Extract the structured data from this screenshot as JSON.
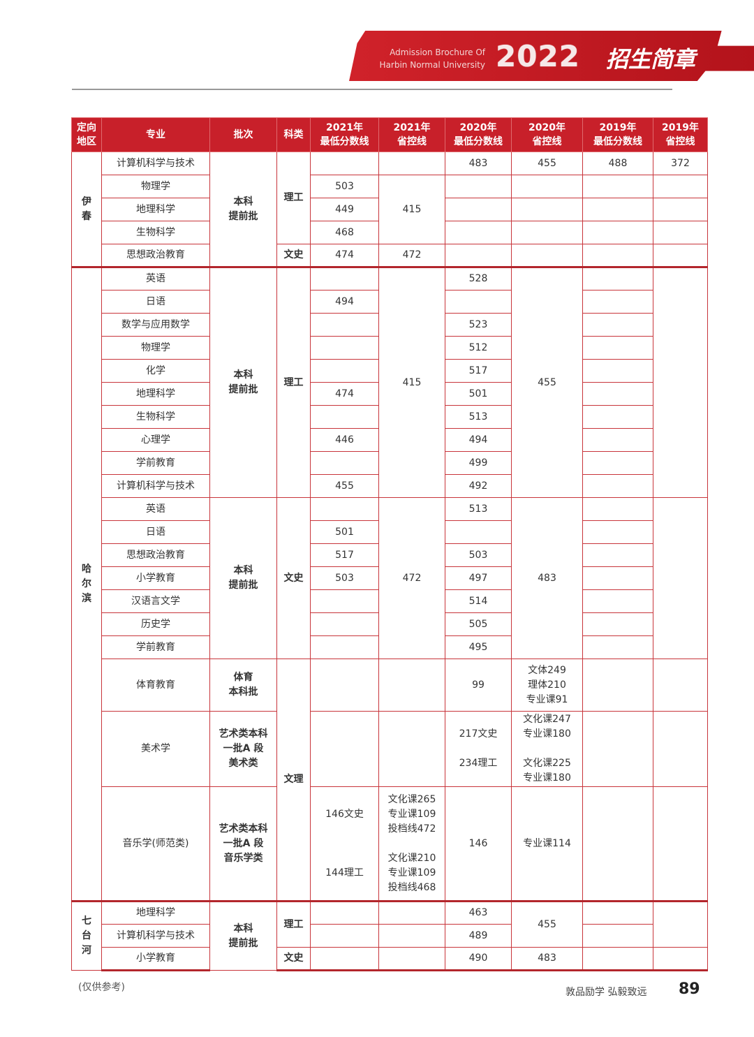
{
  "header": {
    "en_line1": "Admission Brochure Of",
    "en_line2": "Harbin Normal University",
    "year": "2022",
    "title": "招生简章",
    "brand_color": "#c8202a"
  },
  "columns": [
    "定向\n地区",
    "专业",
    "批次",
    "科类",
    "2021年\n最低分数线",
    "2021年\n省控线",
    "2020年\n最低分数线",
    "2020年\n省控线",
    "2019年\n最低分数线",
    "2019年\n省控线"
  ],
  "yichun": {
    "region": "伊\n春",
    "batch": "本科\n提前批",
    "cat_sci": "理工",
    "cat_lib": "文史",
    "ctrl2021_sci": "415",
    "ctrl2021_lib": "472",
    "rows": [
      {
        "major": "计算机科学与技术",
        "min2021": "",
        "min2020": "483",
        "ctrl2020": "455",
        "min2019": "488",
        "ctrl2019": "372"
      },
      {
        "major": "物理学",
        "min2021": "503"
      },
      {
        "major": "地理科学",
        "min2021": "449"
      },
      {
        "major": "生物科学",
        "min2021": "468"
      },
      {
        "major": "思想政治教育",
        "min2021": "474"
      }
    ]
  },
  "harbin": {
    "region": "哈\n尔\n滨",
    "batch": "本科\n提前批",
    "cat_sci": "理工",
    "cat_lib": "文史",
    "cat_art": "文理",
    "ctrl2021_sci": "415",
    "ctrl2020_sci": "455",
    "ctrl2021_lib": "472",
    "ctrl2020_lib": "483",
    "sci_rows": [
      {
        "major": "英语",
        "min2021": "",
        "min2020": "528"
      },
      {
        "major": "日语",
        "min2021": "494",
        "min2020": ""
      },
      {
        "major": "数学与应用数学",
        "min2021": "",
        "min2020": "523"
      },
      {
        "major": "物理学",
        "min2021": "",
        "min2020": "512"
      },
      {
        "major": "化学",
        "min2021": "",
        "min2020": "517"
      },
      {
        "major": "地理科学",
        "min2021": "474",
        "min2020": "501"
      },
      {
        "major": "生物科学",
        "min2021": "",
        "min2020": "513"
      },
      {
        "major": "心理学",
        "min2021": "446",
        "min2020": "494"
      },
      {
        "major": "学前教育",
        "min2021": "",
        "min2020": "499"
      },
      {
        "major": "计算机科学与技术",
        "min2021": "455",
        "min2020": "492"
      }
    ],
    "lib_rows": [
      {
        "major": "英语",
        "min2021": "",
        "min2020": "513"
      },
      {
        "major": "日语",
        "min2021": "501",
        "min2020": ""
      },
      {
        "major": "思想政治教育",
        "min2021": "517",
        "min2020": "503"
      },
      {
        "major": "小学教育",
        "min2021": "503",
        "min2020": "497"
      },
      {
        "major": "汉语言文学",
        "min2021": "",
        "min2020": "514"
      },
      {
        "major": "历史学",
        "min2021": "",
        "min2020": "505"
      },
      {
        "major": "学前教育",
        "min2021": "",
        "min2020": "495"
      }
    ],
    "art_rows": [
      {
        "major": "体育教育",
        "batch": "体育\n本科批",
        "min2021": "",
        "ctrl2021": "",
        "min2020": "99",
        "ctrl2020": "文体249\n理体210\n专业课91"
      },
      {
        "major": "美术学",
        "batch": "艺术类本科\n一批A 段\n美术类",
        "min2021": "",
        "ctrl2021": "",
        "min2020": "217文史\n\n234理工",
        "ctrl2020": "文化课247\n专业课180\n\n文化课225\n专业课180"
      },
      {
        "major": "音乐学(师范类)",
        "batch": "艺术类本科\n一批A 段\n音乐学类",
        "min2021": "146文史\n\n\n\n144理工",
        "ctrl2021": "文化课265\n专业课109\n投档线472\n\n文化课210\n专业课109\n投档线468",
        "min2020": "146",
        "ctrl2020": "专业课114"
      }
    ]
  },
  "qitaihe": {
    "region": "七\n台\n河",
    "batch": "本科\n提前批",
    "cat_sci": "理工",
    "cat_lib": "文史",
    "ctrl2020_sci": "455",
    "ctrl2020_lib": "483",
    "rows": [
      {
        "major": "地理科学",
        "min2020": "463"
      },
      {
        "major": "计算机科学与技术",
        "min2020": "489"
      },
      {
        "major": "小学教育",
        "min2020": "490"
      }
    ]
  },
  "footer": {
    "note": "(仅供参考)",
    "motto": "敦品励学 弘毅致远",
    "page": "89"
  }
}
